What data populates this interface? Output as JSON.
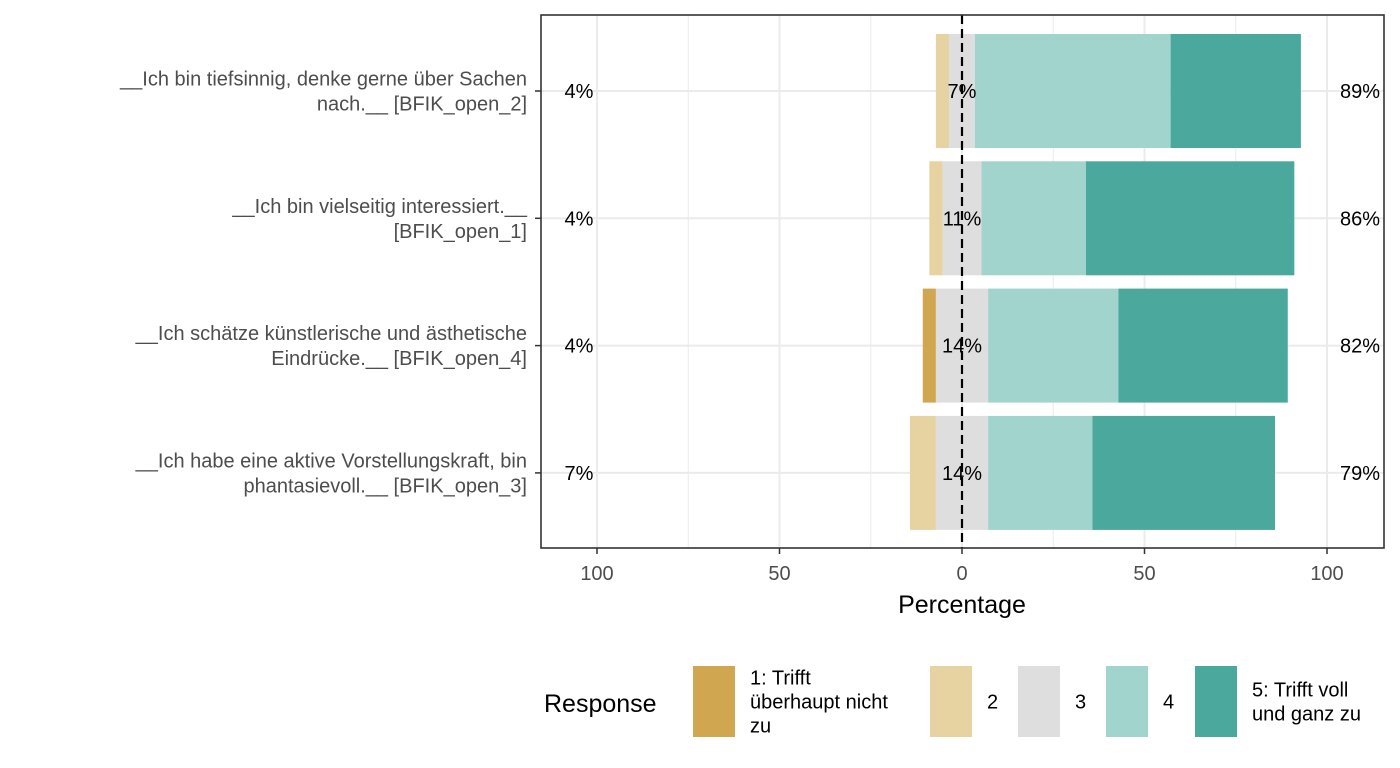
{
  "chart_data": {
    "type": "bar",
    "subtype": "diverging-stacked-likert",
    "xlabel": "Percentage",
    "xlim": [
      -100,
      100
    ],
    "xticks": [
      {
        "value": -100,
        "label": "100"
      },
      {
        "value": -50,
        "label": "50"
      },
      {
        "value": 0,
        "label": "0"
      },
      {
        "value": 50,
        "label": "50"
      },
      {
        "value": 100,
        "label": "100"
      }
    ],
    "grid": true,
    "legend_position": "bottom",
    "legend_title": "Response",
    "levels": [
      {
        "name": "1: Trifft überhaupt nicht zu",
        "lines": [
          "1: Trifft",
          "überhaupt nicht",
          "zu"
        ],
        "color": "#D0A650"
      },
      {
        "name": "2",
        "lines": [
          "2"
        ],
        "color": "#E7D3A2"
      },
      {
        "name": "3",
        "lines": [
          "3"
        ],
        "color": "#DEDEDE"
      },
      {
        "name": "4",
        "lines": [
          "4"
        ],
        "color": "#A0D4CD"
      },
      {
        "name": "5: Trifft voll und ganz zu",
        "lines": [
          "5: Trifft voll",
          "und ganz zu"
        ],
        "color": "#4BA89C"
      }
    ],
    "items": [
      {
        "label_lines": [
          "__Ich bin tiefsinnig, denke gerne über Sachen",
          "nach.__ [BFIK_open_2]"
        ],
        "values": [
          0,
          3.6,
          7.1,
          53.6,
          35.7
        ],
        "low_pct": "4%",
        "neutral_pct": "7%",
        "high_pct": "89%"
      },
      {
        "label_lines": [
          "__Ich bin vielseitig interessiert.__",
          "[BFIK_open_1]"
        ],
        "values": [
          0,
          3.6,
          10.7,
          28.6,
          57.1
        ],
        "low_pct": "4%",
        "neutral_pct": "11%",
        "high_pct": "86%"
      },
      {
        "label_lines": [
          "__Ich schätze künstlerische und ästhetische",
          "Eindrücke.__ [BFIK_open_4]"
        ],
        "values": [
          3.6,
          0,
          14.3,
          35.7,
          46.4
        ],
        "low_pct": "4%",
        "neutral_pct": "14%",
        "high_pct": "82%"
      },
      {
        "label_lines": [
          "__Ich habe eine aktive Vorstellungskraft, bin",
          "phantasievoll.__ [BFIK_open_3]"
        ],
        "values": [
          0,
          7.1,
          14.3,
          28.6,
          50.0
        ],
        "low_pct": "7%",
        "neutral_pct": "14%",
        "high_pct": "79%"
      }
    ]
  }
}
